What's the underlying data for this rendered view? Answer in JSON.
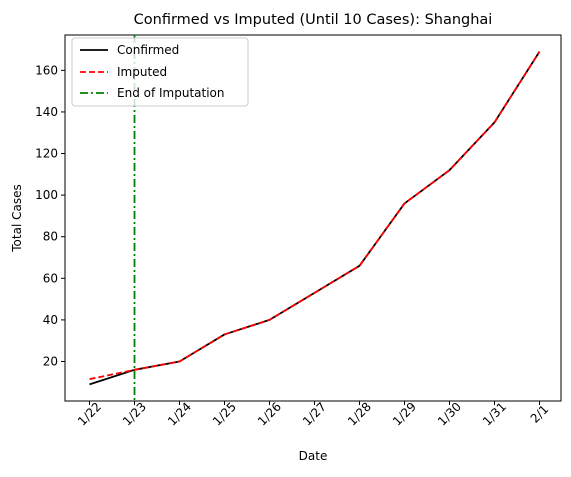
{
  "chart_data": {
    "type": "line",
    "title": "Confirmed vs Imputed (Until 10 Cases): Shanghai",
    "xlabel": "Date",
    "ylabel": "Total Cases",
    "categories": [
      "1/22",
      "1/23",
      "1/24",
      "1/25",
      "1/26",
      "1/27",
      "1/28",
      "1/29",
      "1/30",
      "1/31",
      "2/1"
    ],
    "ylim": [
      1.0,
      177.0
    ],
    "yticks": [
      20,
      40,
      60,
      80,
      100,
      120,
      140,
      160
    ],
    "grid": false,
    "legend_position": "top-left",
    "series": [
      {
        "name": "Confirmed",
        "style": "solid",
        "color": "#000000",
        "values": [
          9,
          16,
          20,
          33,
          40,
          53,
          66,
          96,
          112,
          135,
          169
        ]
      },
      {
        "name": "Imputed",
        "style": "dashed",
        "color": "#ff0000",
        "values": [
          11.5,
          16,
          20,
          33,
          40,
          53,
          66,
          96,
          112,
          135,
          169
        ]
      }
    ],
    "vline": {
      "name": "End of Imputation",
      "category": "1/23",
      "style": "dashdot",
      "color": "#008000"
    }
  }
}
